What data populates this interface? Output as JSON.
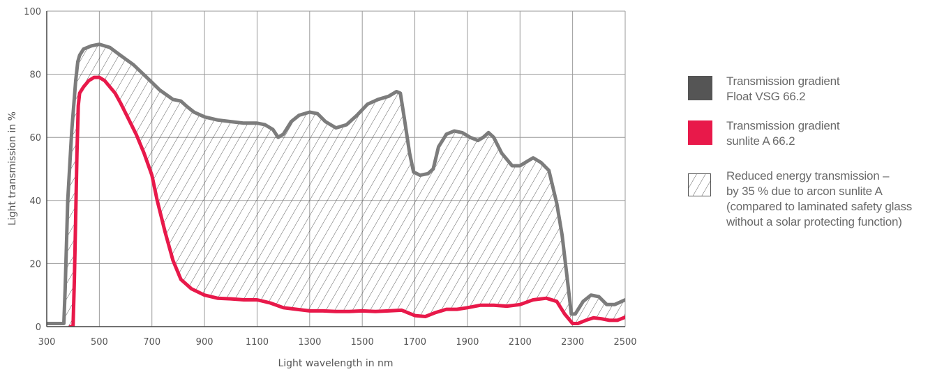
{
  "chart_data": {
    "type": "line",
    "xlabel": "Light wavelength in nm",
    "ylabel": "Light transmission in %",
    "xlim": [
      300,
      2500
    ],
    "ylim": [
      0,
      100
    ],
    "x_ticks": [
      "300",
      "500",
      "700",
      "900",
      "1100",
      "1300",
      "1500",
      "1700",
      "1900",
      "2100",
      "2300",
      "2500"
    ],
    "y_ticks": [
      "0",
      "20",
      "40",
      "60",
      "80",
      "100"
    ],
    "grid": true,
    "legend_position": "right",
    "series": [
      {
        "name": "Transmission gradient\nFloat VSG 66.2",
        "color": "#7c7c7c",
        "points": [
          [
            300,
            1
          ],
          [
            365,
            1
          ],
          [
            370,
            12
          ],
          [
            380,
            40
          ],
          [
            395,
            62
          ],
          [
            410,
            78
          ],
          [
            418,
            84
          ],
          [
            425,
            86
          ],
          [
            440,
            88
          ],
          [
            470,
            89
          ],
          [
            500,
            89.5
          ],
          [
            540,
            88.5
          ],
          [
            580,
            86
          ],
          [
            630,
            83
          ],
          [
            680,
            79
          ],
          [
            730,
            75
          ],
          [
            780,
            72
          ],
          [
            810,
            71.5
          ],
          [
            830,
            70
          ],
          [
            860,
            68
          ],
          [
            900,
            66.5
          ],
          [
            950,
            65.5
          ],
          [
            1000,
            65
          ],
          [
            1050,
            64.5
          ],
          [
            1100,
            64.5
          ],
          [
            1130,
            64
          ],
          [
            1160,
            62.5
          ],
          [
            1180,
            60
          ],
          [
            1200,
            61
          ],
          [
            1230,
            65
          ],
          [
            1260,
            67
          ],
          [
            1300,
            68
          ],
          [
            1330,
            67.5
          ],
          [
            1360,
            65
          ],
          [
            1400,
            63
          ],
          [
            1440,
            64
          ],
          [
            1480,
            67
          ],
          [
            1520,
            70.5
          ],
          [
            1560,
            72
          ],
          [
            1600,
            73
          ],
          [
            1630,
            74.5
          ],
          [
            1645,
            74
          ],
          [
            1660,
            66
          ],
          [
            1680,
            55
          ],
          [
            1695,
            49
          ],
          [
            1720,
            48
          ],
          [
            1750,
            48.5
          ],
          [
            1770,
            50
          ],
          [
            1790,
            57
          ],
          [
            1820,
            61
          ],
          [
            1850,
            62
          ],
          [
            1880,
            61.5
          ],
          [
            1910,
            60
          ],
          [
            1940,
            59
          ],
          [
            1960,
            60
          ],
          [
            1980,
            61.5
          ],
          [
            2000,
            60
          ],
          [
            2030,
            55
          ],
          [
            2070,
            51
          ],
          [
            2100,
            51
          ],
          [
            2120,
            52
          ],
          [
            2150,
            53.5
          ],
          [
            2180,
            52
          ],
          [
            2210,
            49.5
          ],
          [
            2240,
            39
          ],
          [
            2260,
            29
          ],
          [
            2280,
            15
          ],
          [
            2295,
            4
          ],
          [
            2310,
            4
          ],
          [
            2340,
            8
          ],
          [
            2370,
            10
          ],
          [
            2400,
            9.5
          ],
          [
            2430,
            7
          ],
          [
            2460,
            7
          ],
          [
            2500,
            8.5
          ]
        ]
      },
      {
        "name": "Transmission gradient\nsunlite A 66.2",
        "color": "#e8194a",
        "points": [
          [
            390,
            0
          ],
          [
            400,
            0
          ],
          [
            405,
            15
          ],
          [
            410,
            35
          ],
          [
            415,
            55
          ],
          [
            420,
            70
          ],
          [
            425,
            74
          ],
          [
            440,
            76
          ],
          [
            460,
            78
          ],
          [
            480,
            79
          ],
          [
            500,
            79
          ],
          [
            520,
            78
          ],
          [
            540,
            76
          ],
          [
            560,
            74
          ],
          [
            580,
            71
          ],
          [
            610,
            66
          ],
          [
            640,
            61
          ],
          [
            670,
            55
          ],
          [
            700,
            48
          ],
          [
            720,
            40
          ],
          [
            750,
            30
          ],
          [
            780,
            21
          ],
          [
            810,
            15
          ],
          [
            850,
            12
          ],
          [
            900,
            10
          ],
          [
            950,
            9
          ],
          [
            1000,
            8.8
          ],
          [
            1050,
            8.5
          ],
          [
            1100,
            8.5
          ],
          [
            1150,
            7.5
          ],
          [
            1200,
            6
          ],
          [
            1250,
            5.5
          ],
          [
            1300,
            5
          ],
          [
            1350,
            5
          ],
          [
            1400,
            4.8
          ],
          [
            1450,
            4.8
          ],
          [
            1500,
            5
          ],
          [
            1550,
            4.8
          ],
          [
            1600,
            5
          ],
          [
            1650,
            5.2
          ],
          [
            1700,
            3.5
          ],
          [
            1740,
            3.2
          ],
          [
            1780,
            4.5
          ],
          [
            1820,
            5.5
          ],
          [
            1860,
            5.5
          ],
          [
            1900,
            6
          ],
          [
            1950,
            6.8
          ],
          [
            2000,
            6.8
          ],
          [
            2050,
            6.5
          ],
          [
            2100,
            7
          ],
          [
            2150,
            8.5
          ],
          [
            2200,
            9
          ],
          [
            2240,
            8
          ],
          [
            2270,
            4
          ],
          [
            2300,
            1
          ],
          [
            2320,
            1
          ],
          [
            2350,
            2
          ],
          [
            2380,
            2.8
          ],
          [
            2410,
            2.5
          ],
          [
            2440,
            2
          ],
          [
            2470,
            2
          ],
          [
            2500,
            3
          ]
        ]
      }
    ],
    "annotation": "Reduced energy transmission –\nby 35 % due to arcon sunlite A\n(compared to laminated safety glass\nwithout a solar protecting function)"
  }
}
